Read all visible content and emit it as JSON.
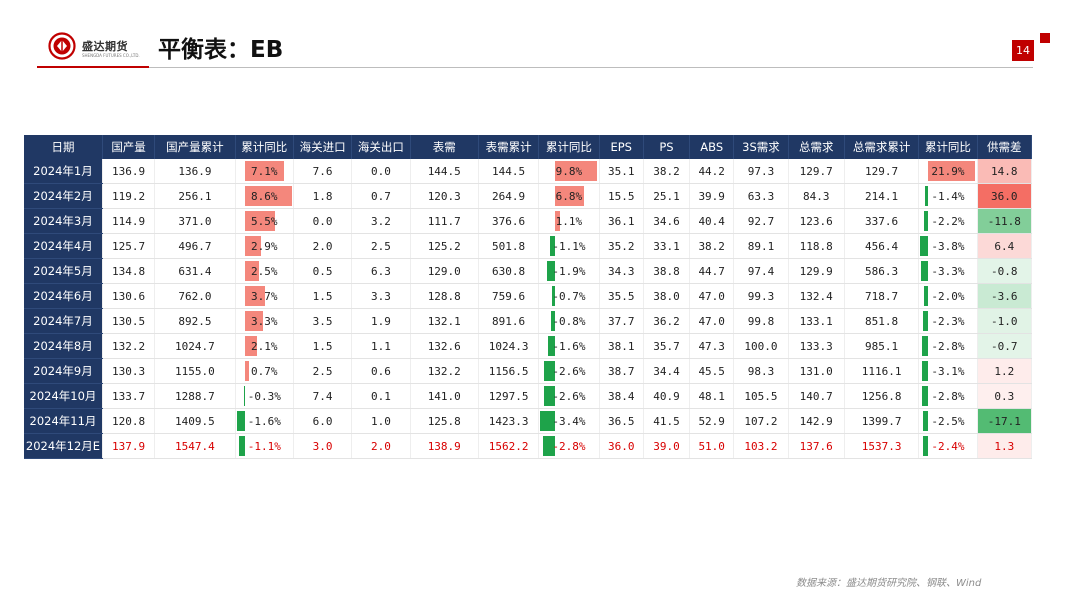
{
  "header": {
    "logo_cn": "盛达期货",
    "logo_en": "SHENGDA FUTURES CO.,LTD.",
    "title": "平衡表：EB",
    "page_number": "14"
  },
  "colors": {
    "header_bg": "#203864",
    "accent_red": "#c00000",
    "bar_positive": "#f4877c",
    "bar_negative": "#1ea34a",
    "forecast_text": "#d80000"
  },
  "table": {
    "columns": [
      "日期",
      "国产量",
      "国产量累计",
      "累计同比",
      "海关进口",
      "海关出口",
      "表需",
      "表需累计",
      "累计同比",
      "EPS",
      "PS",
      "ABS",
      "3S需求",
      "总需求",
      "总需求累计",
      "累计同比",
      "供需差"
    ],
    "rows": [
      {
        "date": "2024年1月",
        "prod": "136.9",
        "prod_cum": "136.9",
        "yoy1": "7.1%",
        "imp": "7.6",
        "exp": "0.0",
        "app": "144.5",
        "app_cum": "144.5",
        "yoy2": "9.8%",
        "eps": "35.1",
        "ps": "38.2",
        "abs": "44.2",
        "s3": "97.3",
        "total": "129.7",
        "total_cum": "129.7",
        "yoy3": "21.9%",
        "gap": "14.8"
      },
      {
        "date": "2024年2月",
        "prod": "119.2",
        "prod_cum": "256.1",
        "yoy1": "8.6%",
        "imp": "1.8",
        "exp": "0.7",
        "app": "120.3",
        "app_cum": "264.9",
        "yoy2": "6.8%",
        "eps": "15.5",
        "ps": "25.1",
        "abs": "39.9",
        "s3": "63.3",
        "total": "84.3",
        "total_cum": "214.1",
        "yoy3": "-1.4%",
        "gap": "36.0"
      },
      {
        "date": "2024年3月",
        "prod": "114.9",
        "prod_cum": "371.0",
        "yoy1": "5.5%",
        "imp": "0.0",
        "exp": "3.2",
        "app": "111.7",
        "app_cum": "376.6",
        "yoy2": "1.1%",
        "eps": "36.1",
        "ps": "34.6",
        "abs": "40.4",
        "s3": "92.7",
        "total": "123.6",
        "total_cum": "337.6",
        "yoy3": "-2.2%",
        "gap": "-11.8"
      },
      {
        "date": "2024年4月",
        "prod": "125.7",
        "prod_cum": "496.7",
        "yoy1": "2.9%",
        "imp": "2.0",
        "exp": "2.5",
        "app": "125.2",
        "app_cum": "501.8",
        "yoy2": "-1.1%",
        "eps": "35.2",
        "ps": "33.1",
        "abs": "38.2",
        "s3": "89.1",
        "total": "118.8",
        "total_cum": "456.4",
        "yoy3": "-3.8%",
        "gap": "6.4"
      },
      {
        "date": "2024年5月",
        "prod": "134.8",
        "prod_cum": "631.4",
        "yoy1": "2.5%",
        "imp": "0.5",
        "exp": "6.3",
        "app": "129.0",
        "app_cum": "630.8",
        "yoy2": "-1.9%",
        "eps": "34.3",
        "ps": "38.8",
        "abs": "44.7",
        "s3": "97.4",
        "total": "129.9",
        "total_cum": "586.3",
        "yoy3": "-3.3%",
        "gap": "-0.8"
      },
      {
        "date": "2024年6月",
        "prod": "130.6",
        "prod_cum": "762.0",
        "yoy1": "3.7%",
        "imp": "1.5",
        "exp": "3.3",
        "app": "128.8",
        "app_cum": "759.6",
        "yoy2": "-0.7%",
        "eps": "35.5",
        "ps": "38.0",
        "abs": "47.0",
        "s3": "99.3",
        "total": "132.4",
        "total_cum": "718.7",
        "yoy3": "-2.0%",
        "gap": "-3.6"
      },
      {
        "date": "2024年7月",
        "prod": "130.5",
        "prod_cum": "892.5",
        "yoy1": "3.3%",
        "imp": "3.5",
        "exp": "1.9",
        "app": "132.1",
        "app_cum": "891.6",
        "yoy2": "-0.8%",
        "eps": "37.7",
        "ps": "36.2",
        "abs": "47.0",
        "s3": "99.8",
        "total": "133.1",
        "total_cum": "851.8",
        "yoy3": "-2.3%",
        "gap": "-1.0"
      },
      {
        "date": "2024年8月",
        "prod": "132.2",
        "prod_cum": "1024.7",
        "yoy1": "2.1%",
        "imp": "1.5",
        "exp": "1.1",
        "app": "132.6",
        "app_cum": "1024.3",
        "yoy2": "-1.6%",
        "eps": "38.1",
        "ps": "35.7",
        "abs": "47.3",
        "s3": "100.0",
        "total": "133.3",
        "total_cum": "985.1",
        "yoy3": "-2.8%",
        "gap": "-0.7"
      },
      {
        "date": "2024年9月",
        "prod": "130.3",
        "prod_cum": "1155.0",
        "yoy1": "0.7%",
        "imp": "2.5",
        "exp": "0.6",
        "app": "132.2",
        "app_cum": "1156.5",
        "yoy2": "-2.6%",
        "eps": "38.7",
        "ps": "34.4",
        "abs": "45.5",
        "s3": "98.3",
        "total": "131.0",
        "total_cum": "1116.1",
        "yoy3": "-3.1%",
        "gap": "1.2"
      },
      {
        "date": "2024年10月",
        "prod": "133.7",
        "prod_cum": "1288.7",
        "yoy1": "-0.3%",
        "imp": "7.4",
        "exp": "0.1",
        "app": "141.0",
        "app_cum": "1297.5",
        "yoy2": "-2.6%",
        "eps": "38.4",
        "ps": "40.9",
        "abs": "48.1",
        "s3": "105.5",
        "total": "140.7",
        "total_cum": "1256.8",
        "yoy3": "-2.8%",
        "gap": "0.3"
      },
      {
        "date": "2024年11月",
        "prod": "120.8",
        "prod_cum": "1409.5",
        "yoy1": "-1.6%",
        "imp": "6.0",
        "exp": "1.0",
        "app": "125.8",
        "app_cum": "1423.3",
        "yoy2": "-3.4%",
        "eps": "36.5",
        "ps": "41.5",
        "abs": "52.9",
        "s3": "107.2",
        "total": "142.9",
        "total_cum": "1399.7",
        "yoy3": "-2.5%",
        "gap": "-17.1"
      },
      {
        "date": "2024年12月E",
        "prod": "137.9",
        "prod_cum": "1547.4",
        "yoy1": "-1.1%",
        "imp": "3.0",
        "exp": "2.0",
        "app": "138.9",
        "app_cum": "1562.2",
        "yoy2": "-2.8%",
        "eps": "36.0",
        "ps": "39.0",
        "abs": "51.0",
        "s3": "103.2",
        "total": "137.6",
        "total_cum": "1537.3",
        "yoy3": "-2.4%",
        "gap": "1.3"
      }
    ]
  },
  "footer": {
    "source": "数据来源：盛达期货研究院、钢联、Wind"
  }
}
